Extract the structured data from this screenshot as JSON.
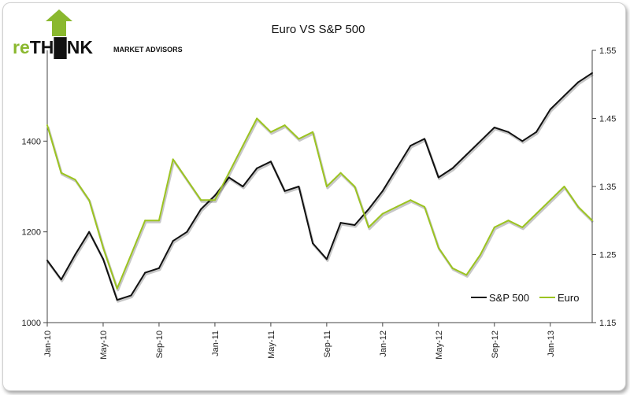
{
  "logo": {
    "prefix": "re",
    "middle": "TH",
    "suffix": "NK",
    "tagline": "MARKET ADVISORS",
    "brand_color": "#8ab82e"
  },
  "chart_data": {
    "type": "line",
    "title": "Euro VS S&P 500",
    "x": [
      "Jan-10",
      "Feb-10",
      "Mar-10",
      "Apr-10",
      "May-10",
      "Jun-10",
      "Jul-10",
      "Aug-10",
      "Sep-10",
      "Oct-10",
      "Nov-10",
      "Dec-10",
      "Jan-11",
      "Feb-11",
      "Mar-11",
      "Apr-11",
      "May-11",
      "Jun-11",
      "Jul-11",
      "Aug-11",
      "Sep-11",
      "Oct-11",
      "Nov-11",
      "Dec-11",
      "Jan-12",
      "Feb-12",
      "Mar-12",
      "Apr-12",
      "May-12",
      "Jun-12",
      "Jul-12",
      "Aug-12",
      "Sep-12",
      "Oct-12",
      "Nov-12",
      "Dec-12",
      "Jan-13",
      "Feb-13",
      "Mar-13",
      "Apr-13"
    ],
    "x_tick_labels": [
      "Jan-10",
      "May-10",
      "Sep-10",
      "Jan-11",
      "May-11",
      "Sep-11",
      "Jan-12",
      "May-12",
      "Sep-12",
      "Jan-13"
    ],
    "series": [
      {
        "name": "S&P 500",
        "axis": "left",
        "color": "#111111",
        "values": [
          1137,
          1095,
          1150,
          1200,
          1140,
          1050,
          1060,
          1110,
          1120,
          1180,
          1200,
          1250,
          1280,
          1320,
          1300,
          1340,
          1355,
          1290,
          1300,
          1175,
          1140,
          1220,
          1215,
          1250,
          1290,
          1340,
          1390,
          1405,
          1320,
          1340,
          1370,
          1400,
          1430,
          1420,
          1400,
          1420,
          1470,
          1500,
          1530,
          1550
        ]
      },
      {
        "name": "Euro",
        "axis": "right",
        "color": "#9cc421",
        "values": [
          1.44,
          1.37,
          1.36,
          1.33,
          1.26,
          1.2,
          1.25,
          1.3,
          1.3,
          1.39,
          1.36,
          1.33,
          1.33,
          1.37,
          1.41,
          1.45,
          1.43,
          1.44,
          1.42,
          1.43,
          1.35,
          1.37,
          1.35,
          1.29,
          1.31,
          1.32,
          1.33,
          1.32,
          1.26,
          1.23,
          1.22,
          1.25,
          1.29,
          1.3,
          1.29,
          1.31,
          1.33,
          1.35,
          1.32,
          1.3
        ]
      }
    ],
    "y_left": {
      "ticks": [
        "1000",
        "1200",
        "1400"
      ],
      "range": [
        1000,
        1600
      ]
    },
    "y_right": {
      "ticks": [
        "1.15",
        "1.25",
        "1.35",
        "1.45",
        "1.55"
      ],
      "range": [
        1.15,
        1.55
      ]
    },
    "legend": {
      "position": "bottom-right",
      "entries": [
        "S&P 500",
        "Euro"
      ]
    },
    "grid": false
  }
}
